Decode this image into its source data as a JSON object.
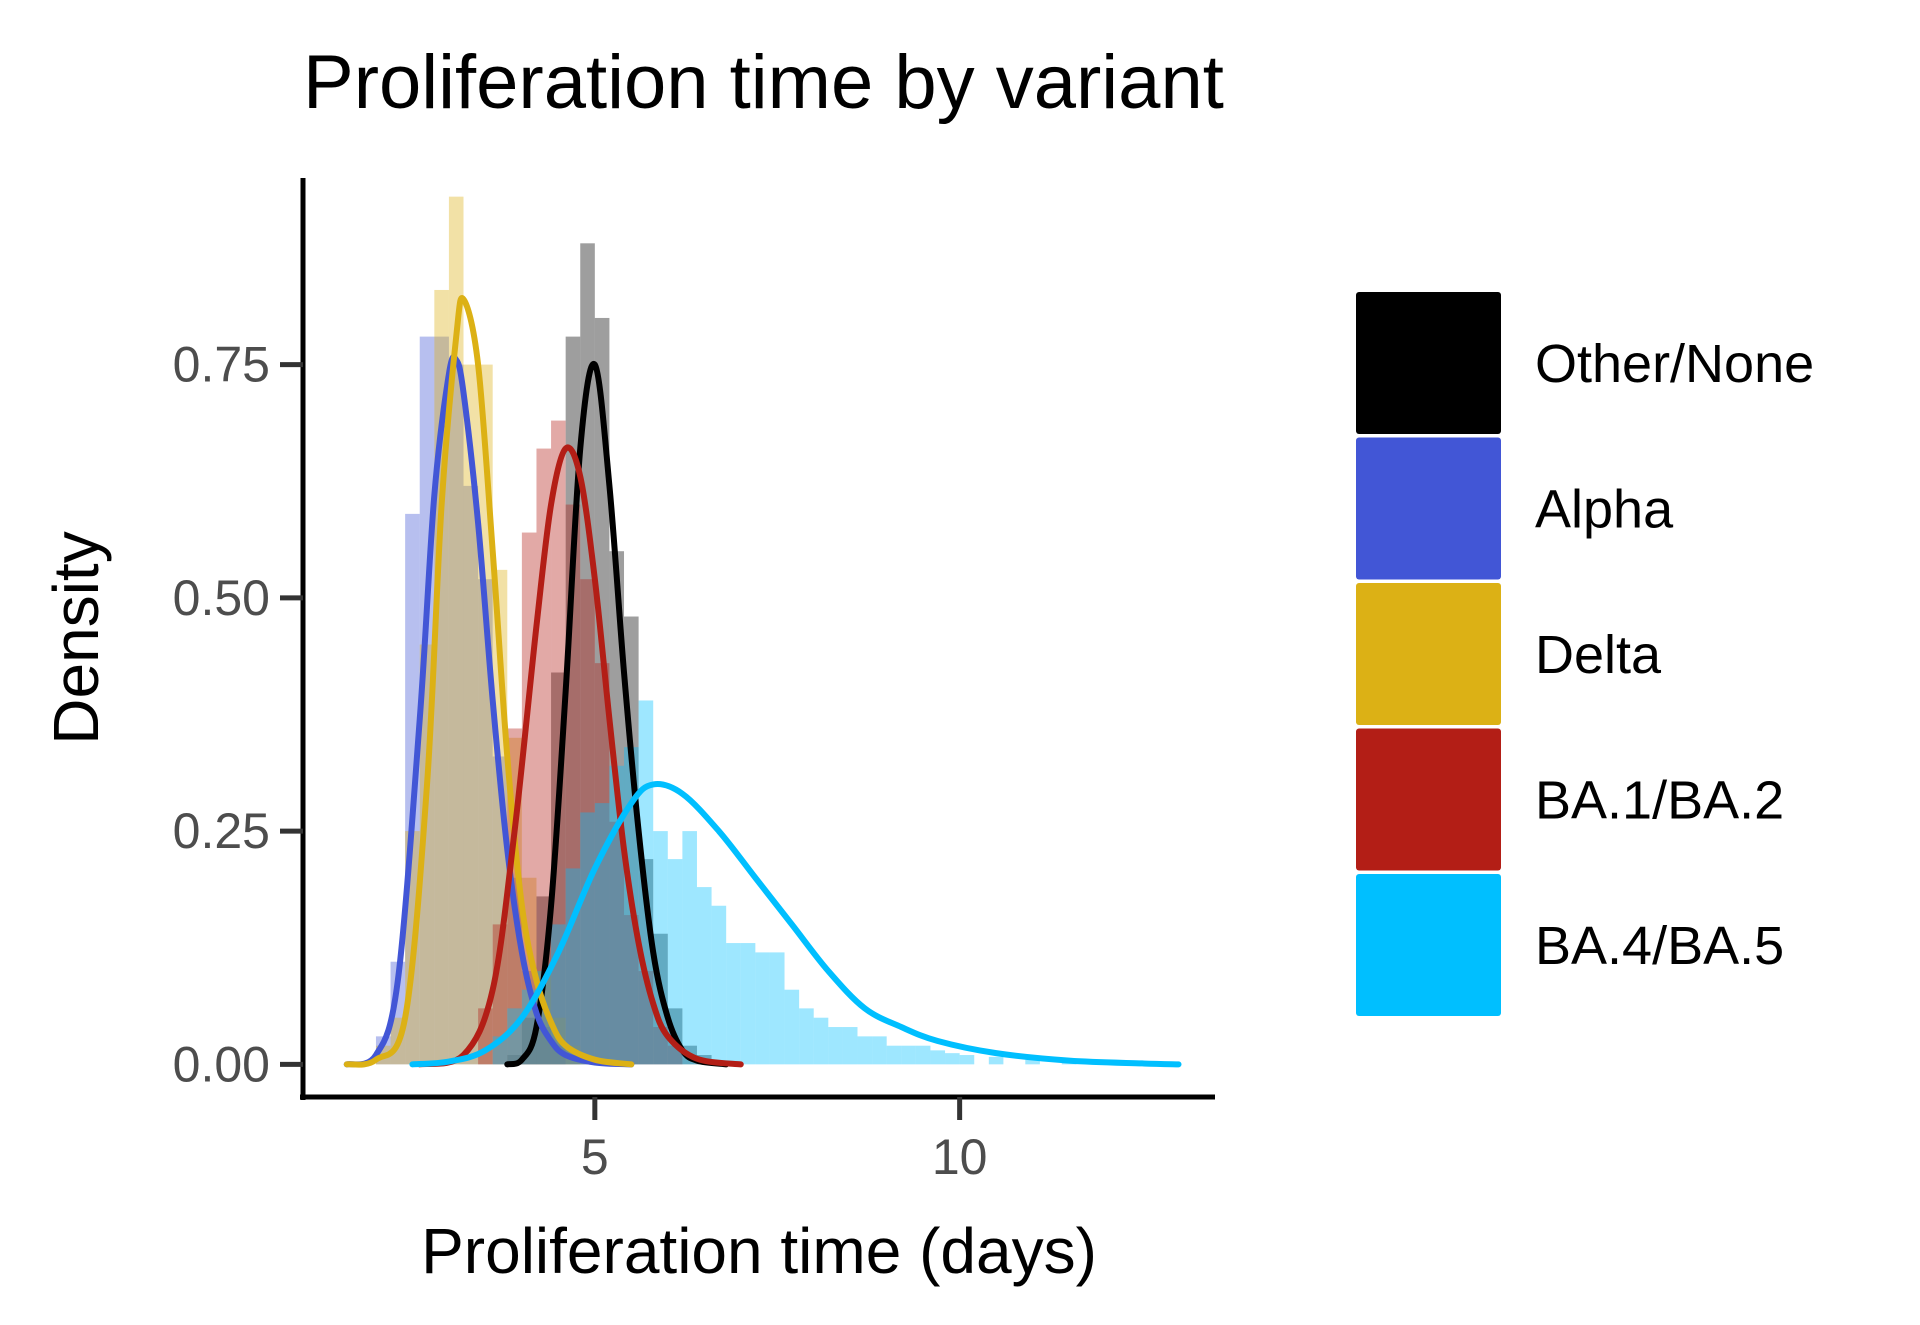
{
  "chart_data": {
    "type": "histogram+density",
    "title": "Proliferation time by variant",
    "xlabel": "Proliferation time (days)",
    "ylabel": "Density",
    "xlim": [
      1.0,
      13.5
    ],
    "ylim": [
      -0.035,
      0.95
    ],
    "xticks": [
      {
        "value": 5,
        "label": "5"
      },
      {
        "value": 10,
        "label": "10"
      }
    ],
    "yticks": [
      {
        "value": 0,
        "label": "0.00"
      },
      {
        "value": 0.25,
        "label": "0.25"
      },
      {
        "value": 0.5,
        "label": "0.50"
      },
      {
        "value": 0.75,
        "label": "0.75"
      }
    ],
    "grid": false,
    "legend_position": "right",
    "bin_width": 0.2,
    "series": [
      {
        "name": "Other/None",
        "color": "#000000",
        "fill_opacity": 0.38,
        "density_curve": [
          [
            3.8,
            0.0
          ],
          [
            4.0,
            0.005
          ],
          [
            4.2,
            0.04
          ],
          [
            4.4,
            0.17
          ],
          [
            4.6,
            0.4
          ],
          [
            4.8,
            0.66
          ],
          [
            5.0,
            0.75
          ],
          [
            5.2,
            0.62
          ],
          [
            5.4,
            0.42
          ],
          [
            5.6,
            0.25
          ],
          [
            5.8,
            0.12
          ],
          [
            6.0,
            0.05
          ],
          [
            6.2,
            0.015
          ],
          [
            6.4,
            0.004
          ],
          [
            6.8,
            0.0
          ]
        ],
        "hist_bins": [
          [
            3.9,
            0.01
          ],
          [
            4.1,
            0.05
          ],
          [
            4.3,
            0.18
          ],
          [
            4.5,
            0.42
          ],
          [
            4.7,
            0.78
          ],
          [
            4.9,
            0.88
          ],
          [
            5.1,
            0.8
          ],
          [
            5.3,
            0.55
          ],
          [
            5.5,
            0.48
          ],
          [
            5.7,
            0.22
          ],
          [
            5.9,
            0.14
          ],
          [
            6.1,
            0.06
          ],
          [
            6.3,
            0.02
          ],
          [
            6.5,
            0.01
          ]
        ]
      },
      {
        "name": "Alpha",
        "color": "#4256d6",
        "fill_opacity": 0.38,
        "density_curve": [
          [
            1.6,
            0.0
          ],
          [
            2.0,
            0.01
          ],
          [
            2.3,
            0.09
          ],
          [
            2.6,
            0.37
          ],
          [
            2.8,
            0.61
          ],
          [
            3.0,
            0.74
          ],
          [
            3.1,
            0.755
          ],
          [
            3.2,
            0.72
          ],
          [
            3.4,
            0.58
          ],
          [
            3.6,
            0.39
          ],
          [
            3.8,
            0.23
          ],
          [
            4.0,
            0.12
          ],
          [
            4.2,
            0.055
          ],
          [
            4.4,
            0.025
          ],
          [
            4.6,
            0.01
          ],
          [
            5.0,
            0.002
          ],
          [
            5.5,
            0.0
          ]
        ],
        "hist_bins": [
          [
            2.1,
            0.03
          ],
          [
            2.3,
            0.11
          ],
          [
            2.5,
            0.59
          ],
          [
            2.7,
            0.78
          ],
          [
            2.9,
            0.78
          ],
          [
            3.1,
            0.75
          ],
          [
            3.3,
            0.62
          ],
          [
            3.5,
            0.52
          ],
          [
            3.7,
            0.33
          ],
          [
            3.9,
            0.2
          ],
          [
            4.1,
            0.1
          ],
          [
            4.3,
            0.04
          ],
          [
            4.5,
            0.02
          ]
        ]
      },
      {
        "name": "Delta",
        "color": "#dcb115",
        "fill_opacity": 0.38,
        "density_curve": [
          [
            1.6,
            0.0
          ],
          [
            2.0,
            0.005
          ],
          [
            2.4,
            0.05
          ],
          [
            2.7,
            0.3
          ],
          [
            2.9,
            0.6
          ],
          [
            3.1,
            0.78
          ],
          [
            3.2,
            0.82
          ],
          [
            3.4,
            0.75
          ],
          [
            3.6,
            0.55
          ],
          [
            3.8,
            0.33
          ],
          [
            4.0,
            0.17
          ],
          [
            4.2,
            0.09
          ],
          [
            4.4,
            0.045
          ],
          [
            4.6,
            0.02
          ],
          [
            5.0,
            0.005
          ],
          [
            5.5,
            0.0
          ]
        ],
        "hist_bins": [
          [
            2.1,
            0.02
          ],
          [
            2.3,
            0.05
          ],
          [
            2.5,
            0.25
          ],
          [
            2.7,
            0.45
          ],
          [
            2.9,
            0.83
          ],
          [
            3.1,
            0.93
          ],
          [
            3.3,
            0.75
          ],
          [
            3.5,
            0.75
          ],
          [
            3.7,
            0.53
          ],
          [
            3.9,
            0.35
          ],
          [
            4.1,
            0.2
          ],
          [
            4.3,
            0.1
          ],
          [
            4.5,
            0.05
          ],
          [
            4.7,
            0.02
          ]
        ]
      },
      {
        "name": "BA.1/BA.2",
        "color": "#b31e16",
        "fill_opacity": 0.38,
        "density_curve": [
          [
            2.6,
            0.0
          ],
          [
            3.2,
            0.01
          ],
          [
            3.6,
            0.08
          ],
          [
            3.9,
            0.25
          ],
          [
            4.2,
            0.47
          ],
          [
            4.4,
            0.6
          ],
          [
            4.6,
            0.66
          ],
          [
            4.8,
            0.63
          ],
          [
            5.0,
            0.52
          ],
          [
            5.2,
            0.37
          ],
          [
            5.4,
            0.23
          ],
          [
            5.6,
            0.13
          ],
          [
            5.8,
            0.065
          ],
          [
            6.0,
            0.03
          ],
          [
            6.4,
            0.006
          ],
          [
            7.0,
            0.0
          ]
        ],
        "hist_bins": [
          [
            3.5,
            0.06
          ],
          [
            3.7,
            0.15
          ],
          [
            3.9,
            0.36
          ],
          [
            4.1,
            0.57
          ],
          [
            4.3,
            0.66
          ],
          [
            4.5,
            0.69
          ],
          [
            4.7,
            0.6
          ],
          [
            4.9,
            0.52
          ],
          [
            5.1,
            0.43
          ],
          [
            5.3,
            0.26
          ],
          [
            5.5,
            0.16
          ],
          [
            5.7,
            0.1
          ],
          [
            5.9,
            0.04
          ],
          [
            6.1,
            0.02
          ]
        ]
      },
      {
        "name": "BA.4/BA.5",
        "color": "#00bfff",
        "fill_opacity": 0.38,
        "density_curve": [
          [
            2.5,
            0.0
          ],
          [
            3.0,
            0.003
          ],
          [
            3.5,
            0.015
          ],
          [
            4.0,
            0.05
          ],
          [
            4.5,
            0.12
          ],
          [
            5.0,
            0.21
          ],
          [
            5.5,
            0.28
          ],
          [
            5.8,
            0.3
          ],
          [
            6.2,
            0.29
          ],
          [
            6.7,
            0.25
          ],
          [
            7.2,
            0.2
          ],
          [
            7.7,
            0.15
          ],
          [
            8.2,
            0.1
          ],
          [
            8.7,
            0.06
          ],
          [
            9.2,
            0.04
          ],
          [
            9.7,
            0.025
          ],
          [
            10.5,
            0.012
          ],
          [
            11.5,
            0.004
          ],
          [
            12.5,
            0.001
          ],
          [
            13.0,
            0.0
          ]
        ],
        "hist_bins": [
          [
            3.7,
            0.03
          ],
          [
            3.9,
            0.06
          ],
          [
            4.1,
            0.08
          ],
          [
            4.3,
            0.1
          ],
          [
            4.5,
            0.15
          ],
          [
            4.7,
            0.21
          ],
          [
            4.9,
            0.27
          ],
          [
            5.1,
            0.28
          ],
          [
            5.3,
            0.32
          ],
          [
            5.5,
            0.34
          ],
          [
            5.7,
            0.39
          ],
          [
            5.9,
            0.25
          ],
          [
            6.1,
            0.22
          ],
          [
            6.3,
            0.25
          ],
          [
            6.5,
            0.19
          ],
          [
            6.7,
            0.17
          ],
          [
            6.9,
            0.13
          ],
          [
            7.1,
            0.13
          ],
          [
            7.3,
            0.12
          ],
          [
            7.5,
            0.12
          ],
          [
            7.7,
            0.08
          ],
          [
            7.9,
            0.06
          ],
          [
            8.1,
            0.05
          ],
          [
            8.3,
            0.04
          ],
          [
            8.5,
            0.04
          ],
          [
            8.7,
            0.03
          ],
          [
            8.9,
            0.03
          ],
          [
            9.1,
            0.02
          ],
          [
            9.3,
            0.02
          ],
          [
            9.5,
            0.02
          ],
          [
            9.7,
            0.015
          ],
          [
            9.9,
            0.012
          ],
          [
            10.1,
            0.01
          ],
          [
            10.5,
            0.008
          ],
          [
            11.0,
            0.005
          ],
          [
            11.5,
            0.003
          ],
          [
            12.0,
            0.002
          ],
          [
            12.5,
            0.001
          ]
        ]
      }
    ]
  }
}
